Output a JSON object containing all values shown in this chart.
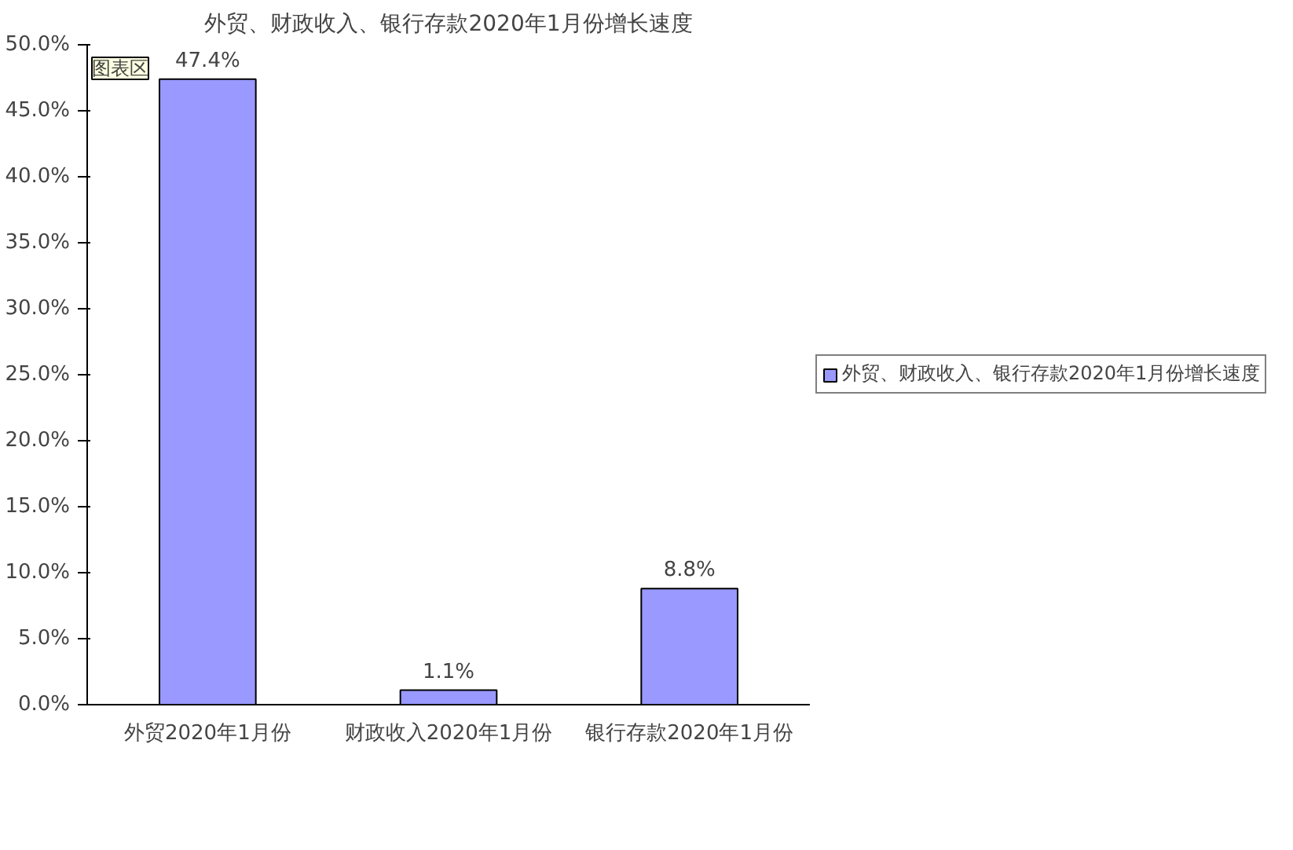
{
  "chart_data": {
    "type": "bar",
    "title": "外贸、财政收入、银行存款2020年1月份增长速度",
    "categories": [
      "外贸2020年1月份",
      "财政收入2020年1月份",
      "银行存款2020年1月份"
    ],
    "series": [
      {
        "name": "外贸、财政收入、银行存款2020年1月份增长速度",
        "color": "#9999ff",
        "values": [
          47.4,
          1.1,
          8.8
        ],
        "value_labels": [
          "47.4%",
          "1.1%",
          "8.8%"
        ]
      }
    ],
    "ylim": [
      0,
      50
    ],
    "yticks": [
      {
        "value": 0,
        "label": "0.0%"
      },
      {
        "value": 5,
        "label": "5.0%"
      },
      {
        "value": 10,
        "label": "10.0%"
      },
      {
        "value": 15,
        "label": "15.0%"
      },
      {
        "value": 20,
        "label": "20.0%"
      },
      {
        "value": 25,
        "label": "25.0%"
      },
      {
        "value": 30,
        "label": "30.0%"
      },
      {
        "value": 35,
        "label": "35.0%"
      },
      {
        "value": 40,
        "label": "40.0%"
      },
      {
        "value": 45,
        "label": "45.0%"
      },
      {
        "value": 50,
        "label": "50.0%"
      }
    ],
    "legend": "right",
    "annotations": [
      "图表区"
    ]
  }
}
